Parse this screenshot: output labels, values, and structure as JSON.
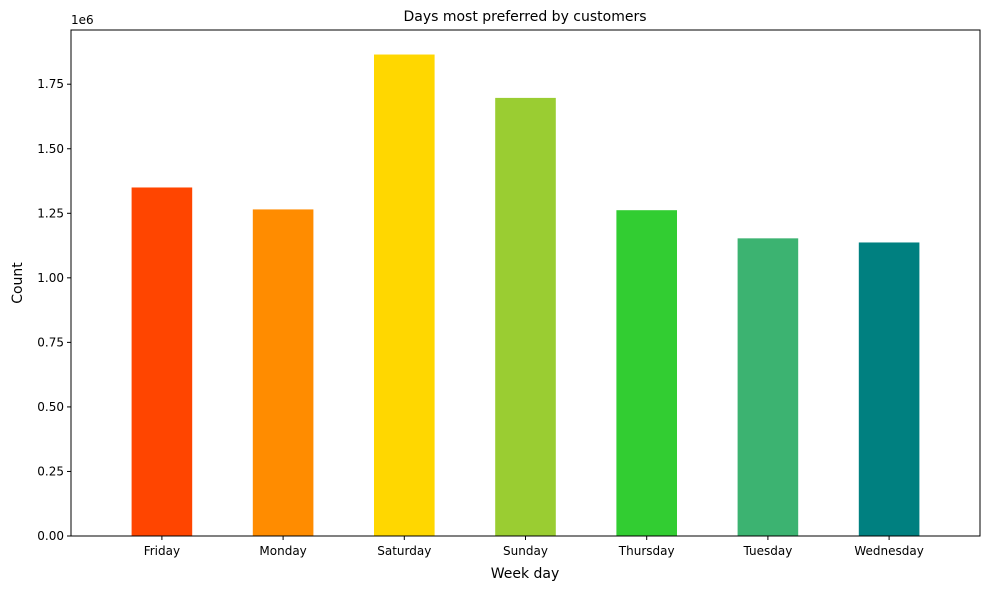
{
  "chart_data": {
    "type": "bar",
    "title": "Days most preferred by customers",
    "xlabel": "Week day",
    "ylabel": "Count",
    "y_offset_label": "1e6",
    "categories": [
      "Friday",
      "Monday",
      "Saturday",
      "Sunday",
      "Thursday",
      "Tuesday",
      "Wednesday"
    ],
    "values": [
      1350000,
      1265000,
      1865000,
      1697000,
      1262000,
      1153000,
      1137000
    ],
    "colors": [
      "#ff4500",
      "#ff8c00",
      "#ffd700",
      "#9acd32",
      "#32cd32",
      "#3cb371",
      "#008080"
    ],
    "ylim": [
      0,
      1.96
    ],
    "y_ticks": [
      0,
      0.25,
      0.5,
      0.75,
      1.0,
      1.25,
      1.5,
      1.75
    ],
    "y_tick_labels": [
      "0.00",
      "0.25",
      "0.50",
      "0.75",
      "1.00",
      "1.25",
      "1.50",
      "1.75"
    ],
    "grid": false,
    "legend": "none"
  }
}
